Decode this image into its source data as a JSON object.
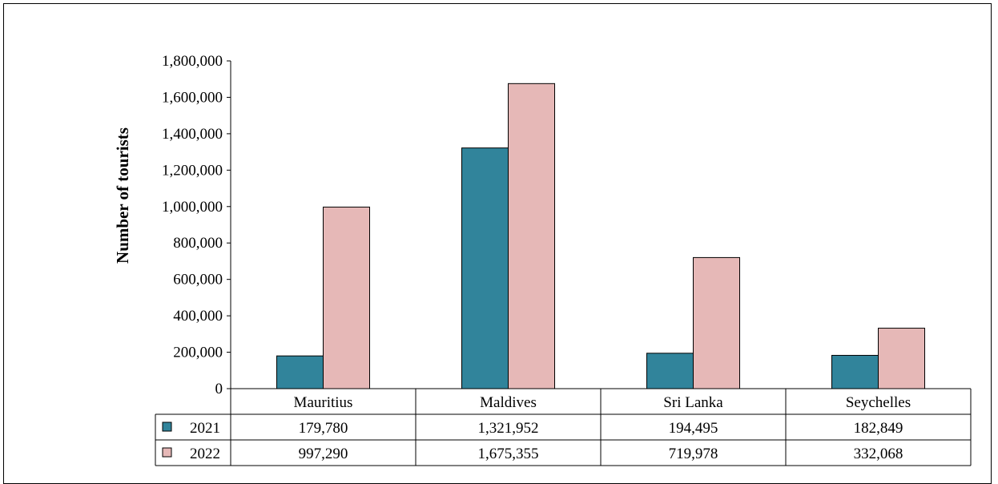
{
  "chart_data": {
    "type": "bar",
    "ylabel": "Number of tourists",
    "ylim": [
      0,
      1800000
    ],
    "yticks": [
      "0",
      "200,000",
      "400,000",
      "600,000",
      "800,000",
      "1,000,000",
      "1,200,000",
      "1,400,000",
      "1,600,000",
      "1,800,000"
    ],
    "categories": [
      "Mauritius",
      "Maldives",
      "Sri Lanka",
      "Seychelles"
    ],
    "series": [
      {
        "name": "2021",
        "color": "#31849b",
        "values": [
          179780,
          1321952,
          194495,
          182849
        ],
        "labels": [
          "179,780",
          "1,321,952",
          "194,495",
          "182,849"
        ]
      },
      {
        "name": "2022",
        "color": "#e6b8b7",
        "values": [
          997290,
          1675355,
          719978,
          332068
        ],
        "labels": [
          "997,290",
          "1,675,355",
          "719,978",
          "332,068"
        ]
      }
    ],
    "data_table": true,
    "grid": false
  }
}
